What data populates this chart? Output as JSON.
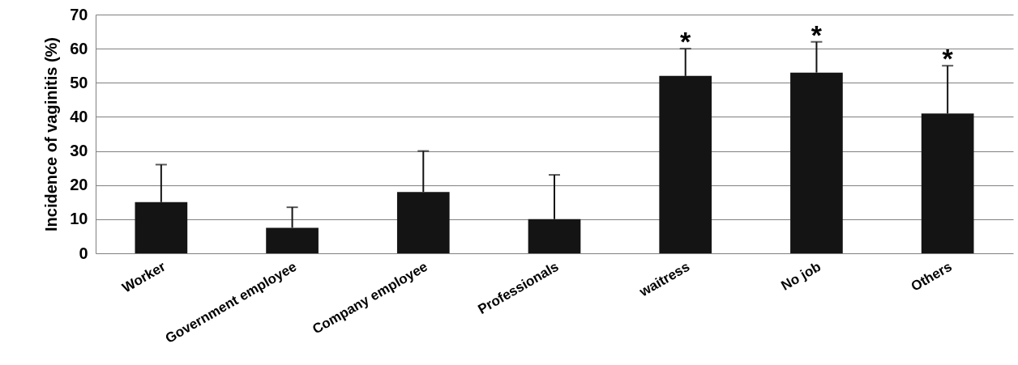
{
  "chart_data": {
    "type": "bar",
    "ylabel": "Incidence of vaginitis (%)",
    "categories": [
      "Worker",
      "Government employee",
      "Company employee",
      "Professionals",
      "waitress",
      "No job",
      "Others"
    ],
    "values": [
      15,
      7.5,
      18,
      10,
      52,
      53,
      41
    ],
    "color": "#141414",
    "errors": [
      [
        15,
        26
      ],
      [
        7.5,
        13.5
      ],
      [
        18,
        30
      ],
      [
        10,
        23
      ],
      [
        52,
        60
      ],
      [
        53,
        62
      ],
      [
        41,
        55
      ]
    ],
    "ylim": [
      0,
      70
    ],
    "yticks": [
      0,
      10,
      20,
      30,
      40,
      50,
      60,
      70
    ],
    "grid": "y",
    "annotations": [
      {
        "text": "*",
        "x": "waitress",
        "y": 60
      },
      {
        "text": "*",
        "x": "No job",
        "y": 62
      },
      {
        "text": "*",
        "x": "Others",
        "y": 55
      }
    ]
  }
}
